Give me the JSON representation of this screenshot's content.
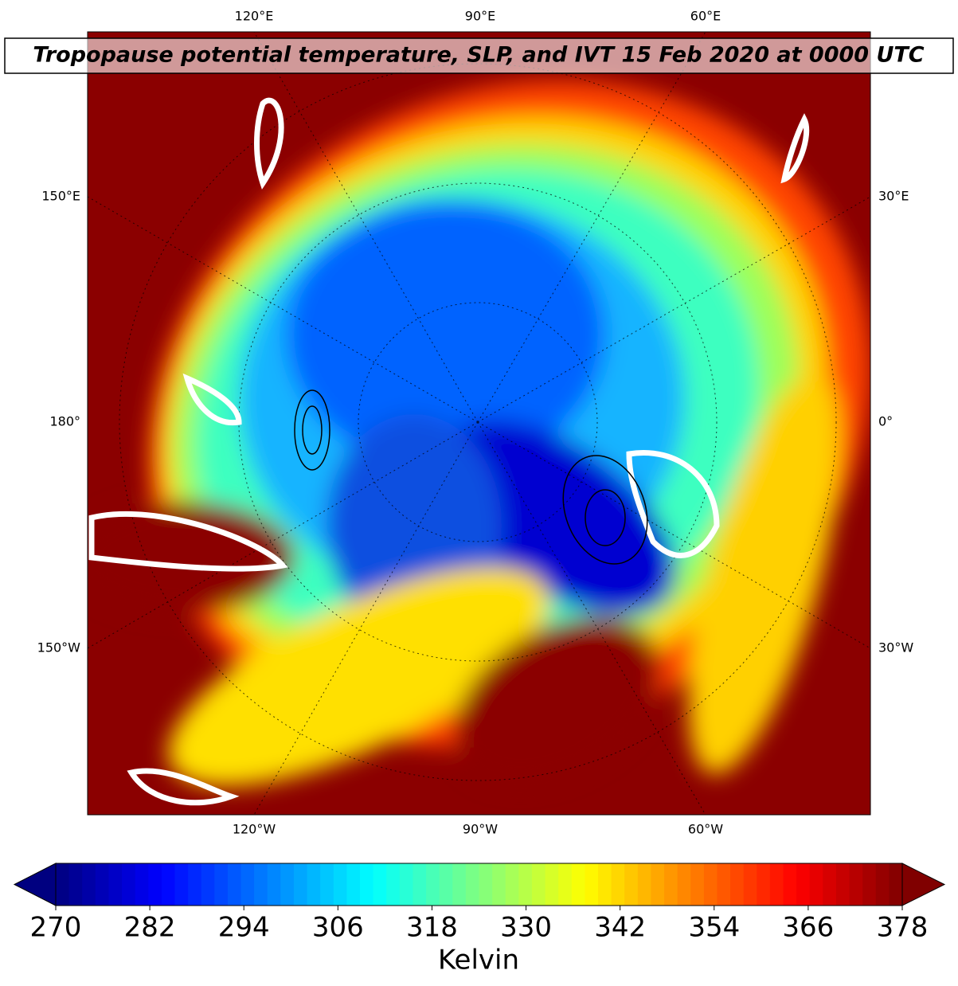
{
  "title": "Tropopause potential temperature, SLP, and IVT 15 Feb 2020 at 0000 UTC",
  "map": {
    "top_labels": [
      "120°E",
      "90°E",
      "60°E"
    ],
    "bottom_labels": [
      "120°W",
      "90°W",
      "60°W"
    ],
    "left_labels": [
      "150°E",
      "180°",
      "150°W"
    ],
    "right_labels": [
      "30°E",
      "0°",
      "30°W"
    ]
  },
  "colorbar": {
    "label": "Kelvin",
    "colormap": "jet",
    "lim": [
      270,
      378
    ],
    "ticks": [
      270,
      282,
      294,
      306,
      318,
      330,
      342,
      354,
      366,
      378
    ]
  }
}
